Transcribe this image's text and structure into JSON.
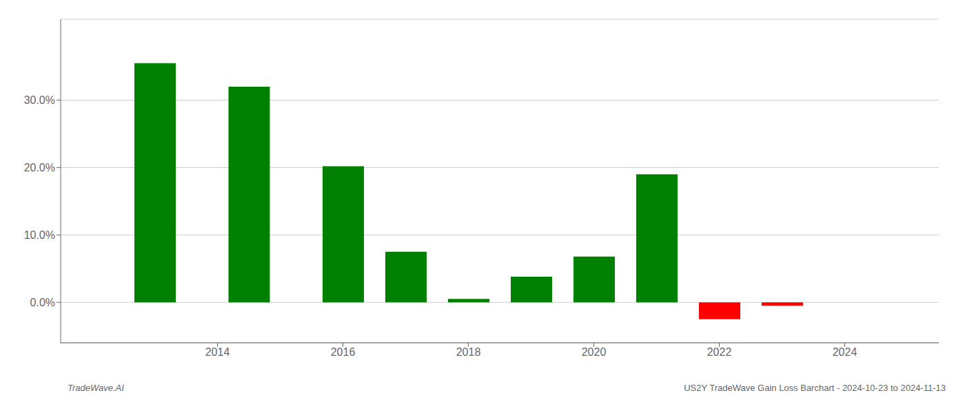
{
  "chart_data": {
    "type": "bar",
    "x": [
      2013,
      2014.5,
      2016,
      2017,
      2018,
      2019,
      2020,
      2021,
      2022,
      2023
    ],
    "values": [
      0.355,
      0.32,
      0.202,
      0.075,
      0.005,
      0.038,
      0.068,
      0.19,
      -0.025,
      -0.005
    ],
    "colors": [
      "#008000",
      "#008000",
      "#008000",
      "#008000",
      "#008000",
      "#008000",
      "#008000",
      "#008000",
      "#ff0000",
      "#ff0000"
    ],
    "xlim": [
      2011.5,
      2025.5
    ],
    "ylim": [
      -0.06,
      0.42
    ],
    "xticks": [
      2014,
      2016,
      2018,
      2020,
      2022,
      2024
    ],
    "yticks": [
      {
        "value": 0.0,
        "label": "0.0%"
      },
      {
        "value": 0.1,
        "label": "10.0%"
      },
      {
        "value": 0.2,
        "label": "20.0%"
      },
      {
        "value": 0.3,
        "label": "30.0%"
      }
    ],
    "grid": true,
    "annotations": [
      "TradeWave.AI",
      "US2Y TradeWave Gain Loss Barchart - 2024-10-23 to 2024-11-13"
    ]
  }
}
